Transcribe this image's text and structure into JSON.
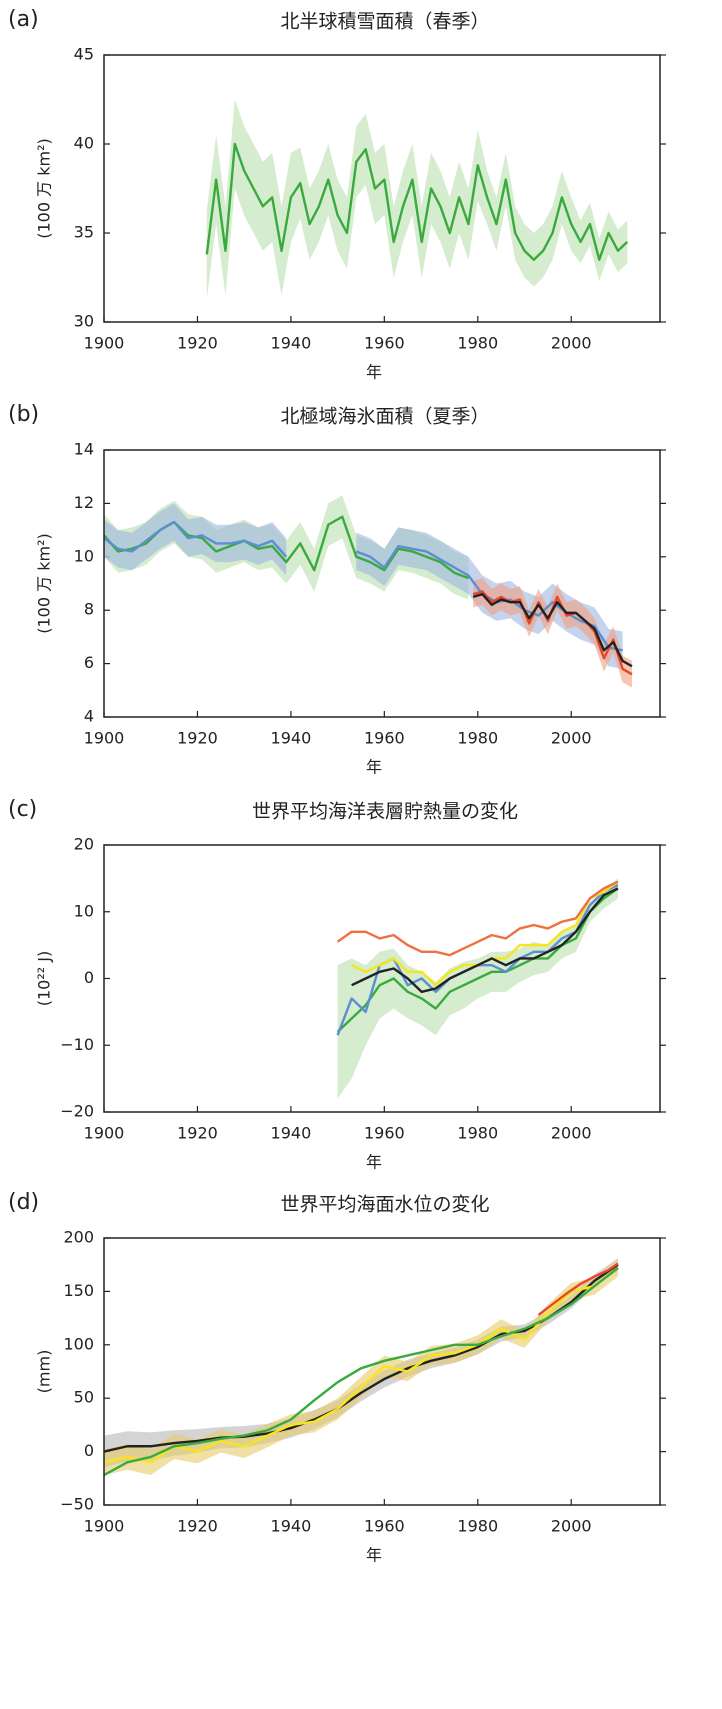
{
  "chart_data": [
    {
      "type": "line",
      "label": "(a)",
      "title": "北半球積雪面積（春季）",
      "ylabel": "(100 万 km²)",
      "xlabel": "年",
      "xlim": [
        1900,
        2019
      ],
      "ylim": [
        30,
        45
      ],
      "xticks": [
        1900,
        1920,
        1940,
        1960,
        1980,
        2000
      ],
      "yticks": [
        30,
        35,
        40,
        45
      ],
      "series": [
        {
          "color": "#3aaa3f",
          "band_color": "#b9e0ad",
          "x": [
            1922,
            1924,
            1926,
            1928,
            1930,
            1932,
            1934,
            1936,
            1938,
            1940,
            1942,
            1944,
            1946,
            1948,
            1950,
            1952,
            1954,
            1956,
            1958,
            1960,
            1962,
            1964,
            1966,
            1968,
            1970,
            1972,
            1974,
            1976,
            1978,
            1980,
            1982,
            1984,
            1986,
            1988,
            1990,
            1992,
            1994,
            1996,
            1998,
            2000,
            2002,
            2004,
            2006,
            2008,
            2010,
            2012
          ],
          "values": [
            33.8,
            38.0,
            34.0,
            40.0,
            38.5,
            37.5,
            36.5,
            37.0,
            34.0,
            37.0,
            37.8,
            35.5,
            36.5,
            38.0,
            36.0,
            35.0,
            39.0,
            39.7,
            37.5,
            38.0,
            34.5,
            36.5,
            38.0,
            34.5,
            37.5,
            36.5,
            35.0,
            37.0,
            35.5,
            38.8,
            37.0,
            35.5,
            38.0,
            35.0,
            34.0,
            33.5,
            34.0,
            35.0,
            37.0,
            35.5,
            34.5,
            35.5,
            33.5,
            35.0,
            34.0,
            34.5
          ],
          "error": [
            2.5,
            2.5,
            2.5,
            2.5,
            2.5,
            2.5,
            2.5,
            2.5,
            2.5,
            2.5,
            2.0,
            2.0,
            2.0,
            2.0,
            2.0,
            2.0,
            2.0,
            2.0,
            2.0,
            2.0,
            2.0,
            2.0,
            2.0,
            2.0,
            2.0,
            2.0,
            2.0,
            2.0,
            2.0,
            2.0,
            1.5,
            1.5,
            1.5,
            1.5,
            1.5,
            1.5,
            1.5,
            1.5,
            1.5,
            1.5,
            1.2,
            1.2,
            1.2,
            1.2,
            1.2,
            1.2
          ]
        }
      ]
    },
    {
      "type": "line",
      "label": "(b)",
      "title": "北極域海氷面積（夏季）",
      "ylabel": "(100 万 km²)",
      "xlabel": "年",
      "xlim": [
        1900,
        2019
      ],
      "ylim": [
        4,
        14
      ],
      "xticks": [
        1900,
        1920,
        1940,
        1960,
        1980,
        2000
      ],
      "yticks": [
        4,
        6,
        8,
        10,
        12,
        14
      ],
      "series": [
        {
          "color": "#3aaa3f",
          "band_color": "#b9e0ad",
          "x": [
            1900,
            1903,
            1906,
            1909,
            1912,
            1915,
            1918,
            1921,
            1924,
            1927,
            1930,
            1933,
            1936,
            1939,
            1942,
            1945,
            1948,
            1951,
            1954,
            1957,
            1960,
            1963,
            1966,
            1969,
            1972,
            1975,
            1978
          ],
          "values": [
            10.8,
            10.2,
            10.3,
            10.5,
            11.0,
            11.3,
            10.8,
            10.7,
            10.2,
            10.4,
            10.6,
            10.3,
            10.4,
            9.8,
            10.5,
            9.5,
            11.2,
            11.5,
            10.0,
            9.8,
            9.5,
            10.3,
            10.2,
            10.0,
            9.8,
            9.4,
            9.2
          ],
          "error": [
            0.8,
            0.8,
            0.8,
            0.8,
            0.8,
            0.8,
            0.8,
            0.8,
            0.8,
            0.8,
            0.8,
            0.8,
            0.8,
            0.8,
            0.8,
            0.8,
            0.8,
            0.8,
            0.8,
            0.8,
            0.8,
            0.8,
            0.8,
            0.8,
            0.8,
            0.8,
            0.8
          ]
        },
        {
          "color": "#5b8fd0",
          "band_color": "#9fb6e0",
          "x": [
            1900,
            1903,
            1906,
            1909,
            1912,
            1915,
            1918,
            1921,
            1924,
            1927,
            1930,
            1933,
            1936,
            1939,
            1942,
            1945,
            1948,
            1951,
            1954,
            1957,
            1960,
            1963,
            1966,
            1969,
            1972,
            1975,
            1978,
            1981,
            1984,
            1987,
            1990,
            1993,
            1996,
            1999,
            2002,
            2005,
            2008,
            2011
          ],
          "values": [
            10.7,
            10.3,
            10.2,
            10.6,
            11.0,
            11.3,
            10.7,
            10.8,
            10.5,
            10.5,
            10.6,
            10.4,
            10.6,
            10.0,
            null,
            null,
            null,
            null,
            10.2,
            10.0,
            9.6,
            10.4,
            10.3,
            10.2,
            9.9,
            9.6,
            9.3,
            8.6,
            8.3,
            8.4,
            8.0,
            7.8,
            8.3,
            7.9,
            7.6,
            7.4,
            6.6,
            6.5
          ],
          "error": [
            0.7,
            0.7,
            0.7,
            0.7,
            0.7,
            0.7,
            0.7,
            0.7,
            0.7,
            0.7,
            0.7,
            0.7,
            0.7,
            0.7,
            null,
            null,
            null,
            null,
            0.7,
            0.7,
            0.7,
            0.7,
            0.7,
            0.7,
            0.7,
            0.7,
            0.7,
            0.7,
            0.7,
            0.7,
            0.7,
            0.7,
            0.7,
            0.7,
            0.7,
            0.7,
            0.7,
            0.7
          ]
        },
        {
          "color": "#e8452a",
          "band_color": "#f2a080",
          "x": [
            1979,
            1981,
            1983,
            1985,
            1987,
            1989,
            1991,
            1993,
            1995,
            1997,
            1999,
            2001,
            2003,
            2005,
            2007,
            2009,
            2011,
            2013
          ],
          "values": [
            8.6,
            8.7,
            8.3,
            8.5,
            8.3,
            8.4,
            7.5,
            8.3,
            7.6,
            8.5,
            7.8,
            7.9,
            7.6,
            7.2,
            6.2,
            6.9,
            5.8,
            5.6
          ],
          "error": [
            0.5,
            0.5,
            0.5,
            0.5,
            0.5,
            0.5,
            0.5,
            0.5,
            0.5,
            0.5,
            0.5,
            0.5,
            0.5,
            0.5,
            0.5,
            0.5,
            0.5,
            0.5
          ]
        },
        {
          "color": "#222222",
          "x": [
            1979,
            1981,
            1983,
            1985,
            1987,
            1989,
            1991,
            1993,
            1995,
            1997,
            1999,
            2001,
            2003,
            2005,
            2007,
            2009,
            2011,
            2013
          ],
          "values": [
            8.5,
            8.6,
            8.2,
            8.4,
            8.3,
            8.3,
            7.7,
            8.2,
            7.7,
            8.3,
            7.9,
            7.9,
            7.6,
            7.3,
            6.5,
            6.8,
            6.1,
            5.9
          ]
        }
      ]
    },
    {
      "type": "line",
      "label": "(c)",
      "title": "世界平均海洋表層貯熱量の変化",
      "ylabel": "(10²² J)",
      "xlabel": "年",
      "xlim": [
        1900,
        2019
      ],
      "ylim": [
        -20,
        20
      ],
      "xticks": [
        1900,
        1920,
        1940,
        1960,
        1980,
        2000
      ],
      "yticks": [
        {
          "value": -20,
          "label": "−20"
        },
        {
          "value": -10,
          "label": "−10"
        },
        0,
        10,
        20
      ],
      "series": [
        {
          "color": "#3aaa3f",
          "band_color": "#b9e0ad",
          "x": [
            1950,
            1953,
            1956,
            1959,
            1962,
            1965,
            1968,
            1971,
            1974,
            1977,
            1980,
            1983,
            1986,
            1989,
            1992,
            1995,
            1998,
            2001,
            2004,
            2007,
            2010
          ],
          "values": [
            -8,
            -6,
            -4,
            -1,
            0,
            -2,
            -3,
            -4.5,
            -2,
            -1,
            0,
            1,
            1,
            2,
            3,
            3,
            5,
            6,
            10,
            12,
            13.5
          ],
          "error": [
            10,
            9,
            6,
            5,
            4.5,
            4,
            4,
            4,
            3.5,
            3.5,
            3,
            3,
            3,
            2.5,
            2.5,
            2,
            2,
            2,
            1.5,
            1.5,
            1.5
          ]
        },
        {
          "color": "#5b8fd0",
          "x": [
            1950,
            1953,
            1956,
            1959,
            1962,
            1965,
            1968,
            1971,
            1974,
            1977,
            1980,
            1983,
            1986,
            1989,
            1992,
            1995,
            1998,
            2001,
            2004,
            2007,
            2010
          ],
          "values": [
            -8.5,
            -3,
            -5,
            2,
            3,
            -1,
            0,
            -2,
            0,
            1,
            2,
            2,
            1,
            3,
            4,
            4,
            6,
            7,
            11,
            13,
            14
          ]
        },
        {
          "color": "#f7e51c",
          "x": [
            1950,
            1953,
            1956,
            1959,
            1962,
            1965,
            1968,
            1971,
            1974,
            1977,
            1980,
            1983,
            1986,
            1989,
            1992,
            1995,
            1998,
            2001,
            2004,
            2007,
            2010
          ],
          "values": [
            null,
            2,
            1,
            2,
            3,
            1,
            1,
            -1,
            1,
            2,
            2,
            3,
            3,
            5,
            5,
            5,
            7,
            8,
            12,
            13,
            14.5
          ]
        },
        {
          "color": "#f07040",
          "x": [
            1950,
            1953,
            1956,
            1959,
            1962,
            1965,
            1968,
            1971,
            1974,
            1977,
            1980,
            1983,
            1986,
            1989,
            1992,
            1995,
            1998,
            2001,
            2004,
            2007,
            2010
          ],
          "values": [
            5.5,
            7.0,
            7.0,
            6.0,
            6.5,
            5.0,
            4.0,
            4.0,
            3.5,
            4.5,
            5.5,
            6.5,
            6.0,
            7.5,
            8.0,
            7.5,
            8.5,
            9.0,
            12.0,
            13.5,
            14.5
          ]
        },
        {
          "color": "#222222",
          "x": [
            1950,
            1953,
            1956,
            1959,
            1962,
            1965,
            1968,
            1971,
            1974,
            1977,
            1980,
            1983,
            1986,
            1989,
            1992,
            1995,
            1998,
            2001,
            2004,
            2007,
            2010
          ],
          "values": [
            null,
            -1,
            0,
            1,
            1.5,
            0,
            -2,
            -1.5,
            0,
            1,
            2,
            3,
            2,
            3,
            3,
            4,
            5,
            7,
            10,
            12.5,
            13.5
          ]
        }
      ]
    },
    {
      "type": "line",
      "label": "(d)",
      "title": "世界平均海面水位の変化",
      "ylabel": "(mm)",
      "xlabel": "年",
      "xlim": [
        1900,
        2019
      ],
      "ylim": [
        -50,
        200
      ],
      "xticks": [
        1900,
        1920,
        1940,
        1960,
        1980,
        2000
      ],
      "yticks": [
        {
          "value": -50,
          "label": "−50"
        },
        0,
        50,
        100,
        150,
        200
      ],
      "series": [
        {
          "color": "#222222",
          "band_color": "#b8b8b8",
          "x": [
            1900,
            1905,
            1910,
            1915,
            1920,
            1925,
            1930,
            1935,
            1940,
            1945,
            1950,
            1955,
            1960,
            1965,
            1970,
            1975,
            1980,
            1985,
            1990,
            1995,
            2000,
            2005,
            2010
          ],
          "values": [
            0,
            5,
            5,
            8,
            10,
            13,
            14,
            17,
            22,
            30,
            40,
            55,
            68,
            78,
            85,
            90,
            98,
            110,
            113,
            125,
            140,
            160,
            175
          ],
          "error": [
            15,
            14,
            13,
            12,
            11,
            10,
            10,
            9,
            9,
            9,
            8,
            8,
            8,
            8,
            7,
            7,
            7,
            7,
            6,
            6,
            6,
            6,
            6
          ]
        },
        {
          "color": "#f7e51c",
          "band_color": "#e8cc6a",
          "x": [
            1900,
            1905,
            1910,
            1915,
            1920,
            1925,
            1930,
            1935,
            1940,
            1945,
            1950,
            1955,
            1960,
            1965,
            1970,
            1975,
            1980,
            1985,
            1990,
            1995,
            2000,
            2005,
            2010
          ],
          "values": [
            -10,
            -5,
            -10,
            5,
            0,
            10,
            5,
            15,
            25,
            28,
            40,
            60,
            80,
            75,
            90,
            92,
            100,
            115,
            105,
            130,
            150,
            155,
            172
          ],
          "error": [
            12,
            12,
            12,
            12,
            11,
            11,
            11,
            11,
            10,
            10,
            10,
            10,
            10,
            9,
            9,
            9,
            9,
            9,
            8,
            8,
            8,
            8,
            8
          ]
        },
        {
          "color": "#3aaa3f",
          "x": [
            1900,
            1905,
            1910,
            1915,
            1920,
            1925,
            1930,
            1935,
            1940,
            1945,
            1950,
            1955,
            1960,
            1965,
            1970,
            1975,
            1980,
            1985,
            1990,
            1995,
            2000,
            2005,
            2010
          ],
          "values": [
            -22,
            -10,
            -5,
            5,
            8,
            12,
            15,
            20,
            30,
            48,
            65,
            78,
            85,
            90,
            95,
            100,
            100,
            108,
            115,
            125,
            138,
            155,
            172
          ]
        },
        {
          "color": "#e8452a",
          "x": [
            1993,
            1996,
            1999,
            2002,
            2005,
            2008,
            2010
          ],
          "values": [
            128,
            138,
            148,
            157,
            164,
            170,
            176
          ]
        }
      ]
    }
  ]
}
